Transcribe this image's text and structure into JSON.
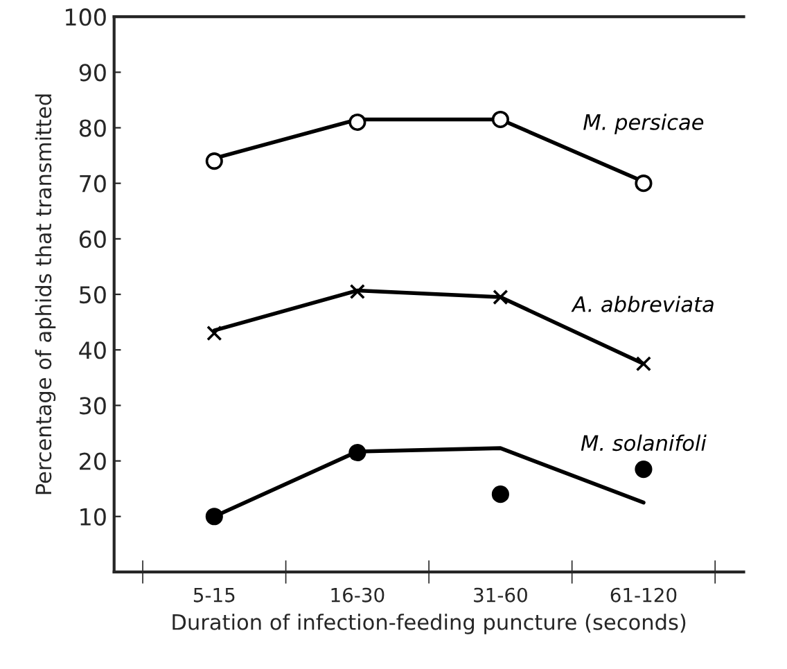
{
  "chart_data": {
    "type": "scatter",
    "xlabel": "Duration of infection-feeding puncture (seconds)",
    "ylabel": "Percentage of aphids that transmitted",
    "categories": [
      "5-15",
      "16-30",
      "31-60",
      "61-120"
    ],
    "ylim": [
      0,
      100
    ],
    "yticks": [
      10,
      20,
      30,
      40,
      50,
      60,
      70,
      80,
      90,
      100
    ],
    "series": [
      {
        "type": "scatter",
        "marker": "circle",
        "color": "#ffffff",
        "values": [
          74,
          81,
          81.5,
          70
        ]
      },
      {
        "type": "scatter",
        "marker": "cross",
        "color": "#000000",
        "values": [
          43,
          50.5,
          49.5,
          37.5
        ]
      },
      {
        "type": "scatter",
        "marker": "circle",
        "color": "#000000",
        "values": [
          10,
          21.5,
          14,
          18.5
        ]
      },
      {
        "type": "line",
        "name": "M. persicae",
        "marker": "none",
        "line_style": "solid",
        "color": "#000000",
        "values": [
          74.5,
          81.5,
          81.5,
          70.3
        ]
      },
      {
        "type": "line",
        "name": "A. abbreviata",
        "marker": "none",
        "line_style": "solid",
        "color": "#000000",
        "values": [
          43.5,
          50.7,
          49.5,
          37.5
        ]
      },
      {
        "type": "line",
        "name": "M. solanifoli",
        "marker": "none",
        "line_style": "solid",
        "color": "#000000",
        "values": [
          10,
          21.7,
          22.3,
          12.5
        ]
      }
    ]
  }
}
